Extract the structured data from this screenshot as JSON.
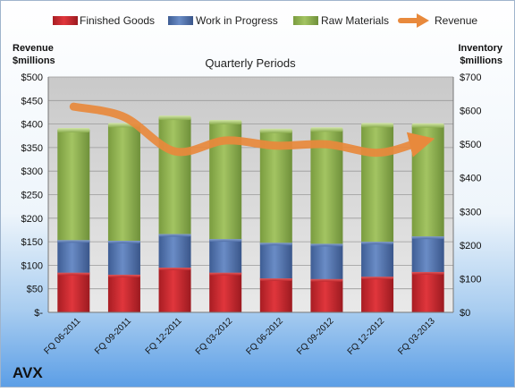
{
  "chart_data": {
    "type": "bar",
    "subtitle": "Quarterly Periods",
    "company": "AVX",
    "categories": [
      "FQ 06-2011",
      "FQ 09-2011",
      "FQ 12-2011",
      "FQ 03-2012",
      "FQ 06-2012",
      "FQ 09-2012",
      "FQ 12-2012",
      "FQ 03-2013"
    ],
    "left_axis": {
      "label_line1": "Revenue",
      "label_line2": "$millions",
      "range": [
        0,
        500
      ],
      "ticks": [
        0,
        50,
        100,
        150,
        200,
        250,
        300,
        350,
        400,
        450,
        500
      ],
      "tick_labels": [
        "$-",
        "$50",
        "$100",
        "$150",
        "$200",
        "$250",
        "$300",
        "$350",
        "$400",
        "$450",
        "$500"
      ]
    },
    "right_axis": {
      "label_line1": "Inventory",
      "label_line2": "$millions",
      "range": [
        0,
        700
      ],
      "ticks": [
        0,
        100,
        200,
        300,
        400,
        500,
        600,
        700
      ],
      "tick_labels": [
        "$0",
        "$100",
        "$200",
        "$300",
        "$400",
        "$500",
        "$600",
        "$700"
      ]
    },
    "series": [
      {
        "name": "Finished Goods",
        "kind": "bar",
        "axis": "right",
        "color": "#c0272d",
        "values": [
          118,
          112,
          133,
          118,
          101,
          99,
          106,
          120
        ]
      },
      {
        "name": "Work in Progress",
        "kind": "bar",
        "axis": "right",
        "color": "#4f6fa8",
        "values": [
          97,
          101,
          100,
          100,
          106,
          105,
          104,
          106
        ]
      },
      {
        "name": "Raw Materials",
        "kind": "bar",
        "axis": "right",
        "color": "#8bad4f",
        "values": [
          328,
          345,
          347,
          349,
          334,
          341,
          348,
          331
        ]
      },
      {
        "name": "Revenue",
        "kind": "line",
        "axis": "left",
        "color": "#e8893c",
        "values": [
          437,
          415,
          342,
          365,
          354,
          357,
          339,
          360
        ]
      }
    ],
    "grid": true,
    "legend": "top"
  }
}
